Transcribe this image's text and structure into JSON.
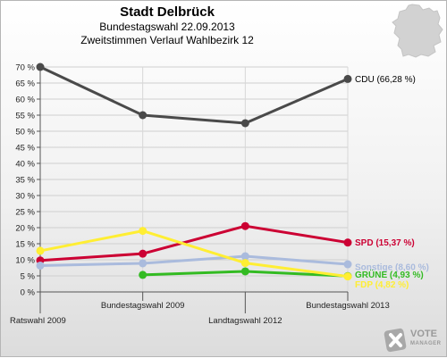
{
  "title": "Stadt Delbrück",
  "subtitle1": "Bundestagswahl 22.09.2013",
  "subtitle2": "Zweitstimmen Verlauf Wahlbezirk 12",
  "logo": {
    "line1": "VOTE",
    "line2": "MANAGER"
  },
  "chart_data": {
    "type": "line",
    "x": [
      "Ratswahl 2009",
      "Bundestagswahl 2009",
      "Landtagswahl 2012",
      "Bundestagswahl 2013"
    ],
    "ylim": [
      0,
      70
    ],
    "yticks": [
      0,
      5,
      10,
      15,
      20,
      25,
      30,
      35,
      40,
      45,
      50,
      55,
      60,
      65,
      70
    ],
    "ytick_labels": [
      "0 %",
      "5 %",
      "10 %",
      "15 %",
      "20 %",
      "25 %",
      "30 %",
      "35 %",
      "40 %",
      "45 %",
      "50 %",
      "55 %",
      "60 %",
      "65 %",
      "70 %"
    ],
    "grid": true,
    "series": [
      {
        "name": "CDU",
        "label": "CDU (66,28 %)",
        "color": "#4a4a4a",
        "values": [
          70,
          55,
          52.5,
          66.28
        ]
      },
      {
        "name": "SPD",
        "label": "SPD (15,37 %)",
        "color": "#cc0033",
        "values": [
          9.8,
          11.9,
          20.5,
          15.37
        ]
      },
      {
        "name": "Sonstige",
        "label": "Sonstige (8,60 %)",
        "color": "#aabbdd",
        "values": [
          8.2,
          8.9,
          11.1,
          8.6
        ]
      },
      {
        "name": "GRÜNE",
        "label": "GRÜNE (4,93 %)",
        "color": "#33bb22",
        "values": [
          null,
          5.3,
          6.4,
          4.93
        ]
      },
      {
        "name": "FDP",
        "label": "FDP (4,82 %)",
        "color": "#ffee33",
        "values": [
          12.8,
          19.0,
          9.0,
          4.82
        ]
      }
    ]
  }
}
